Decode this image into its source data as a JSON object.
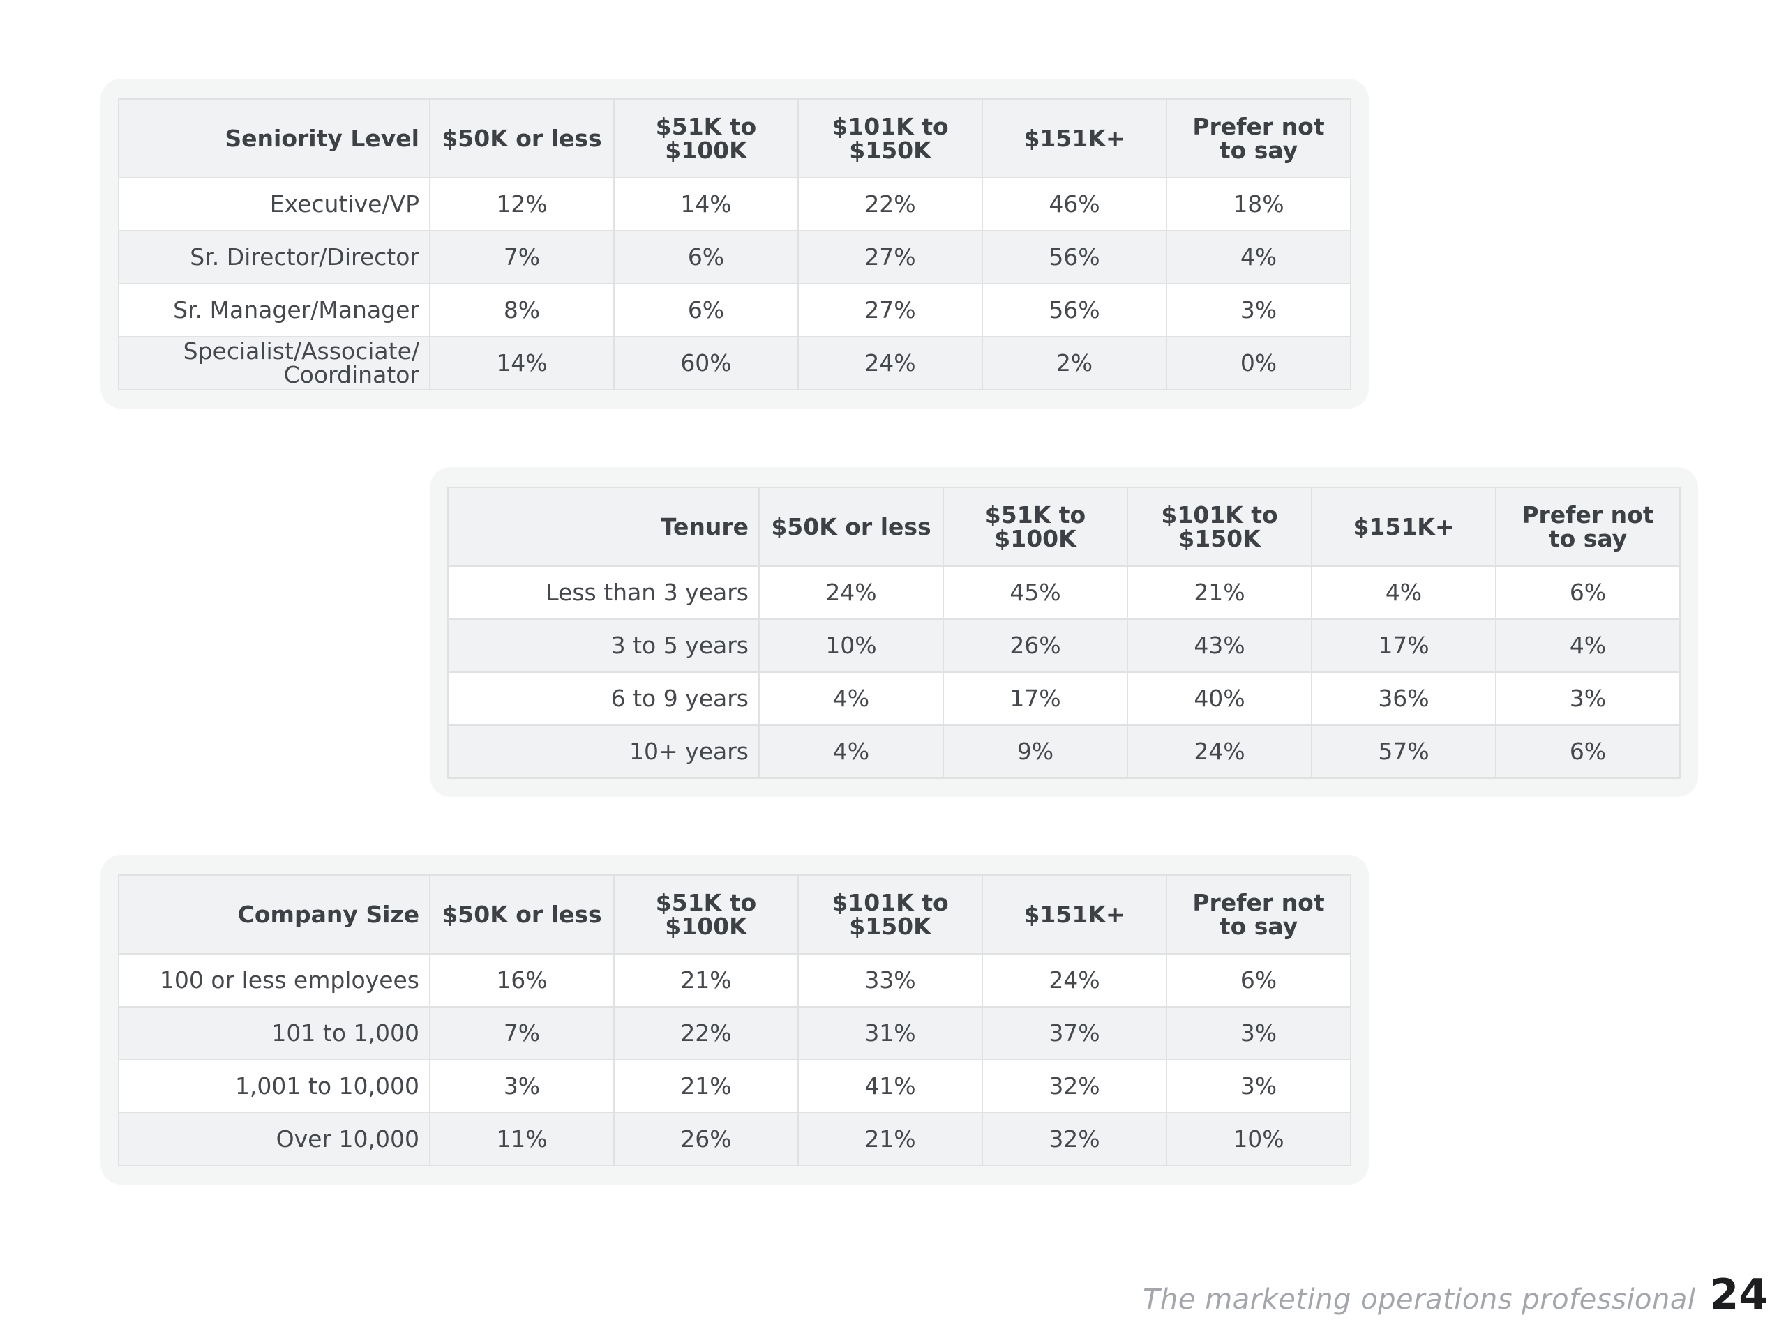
{
  "tables": [
    {
      "header": [
        "Seniority Level",
        "$50K or less",
        "$51K to $100K",
        "$101K to $150K",
        "$151K+",
        "Prefer not to say"
      ],
      "rows": [
        [
          "Executive/VP",
          "12%",
          "14%",
          "22%",
          "46%",
          "18%"
        ],
        [
          "Sr. Director/Director",
          "7%",
          "6%",
          "27%",
          "56%",
          "4%"
        ],
        [
          "Sr. Manager/Manager",
          "8%",
          "6%",
          "27%",
          "56%",
          "3%"
        ],
        [
          "Specialist/Associate/ Coordinator",
          "14%",
          "60%",
          "24%",
          "2%",
          "0%"
        ]
      ]
    },
    {
      "header": [
        "Tenure",
        "$50K or less",
        "$51K to $100K",
        "$101K to $150K",
        "$151K+",
        "Prefer not to say"
      ],
      "rows": [
        [
          "Less than 3 years",
          "24%",
          "45%",
          "21%",
          "4%",
          "6%"
        ],
        [
          "3 to 5 years",
          "10%",
          "26%",
          "43%",
          "17%",
          "4%"
        ],
        [
          "6 to 9 years",
          "4%",
          "17%",
          "40%",
          "36%",
          "3%"
        ],
        [
          "10+ years",
          "4%",
          "9%",
          "24%",
          "57%",
          "6%"
        ]
      ]
    },
    {
      "header": [
        "Company Size",
        "$50K or less",
        "$51K to $100K",
        "$101K to $150K",
        "$151K+",
        "Prefer not to say"
      ],
      "rows": [
        [
          "100 or less employees",
          "16%",
          "21%",
          "33%",
          "24%",
          "6%"
        ],
        [
          "101 to 1,000",
          "7%",
          "22%",
          "31%",
          "37%",
          "3%"
        ],
        [
          "1,001 to 10,000",
          "3%",
          "21%",
          "41%",
          "32%",
          "3%"
        ],
        [
          "Over 10,000",
          "11%",
          "26%",
          "21%",
          "32%",
          "10%"
        ]
      ]
    }
  ],
  "footer": {
    "caption": "The marketing operations professional",
    "page_number": "24"
  }
}
